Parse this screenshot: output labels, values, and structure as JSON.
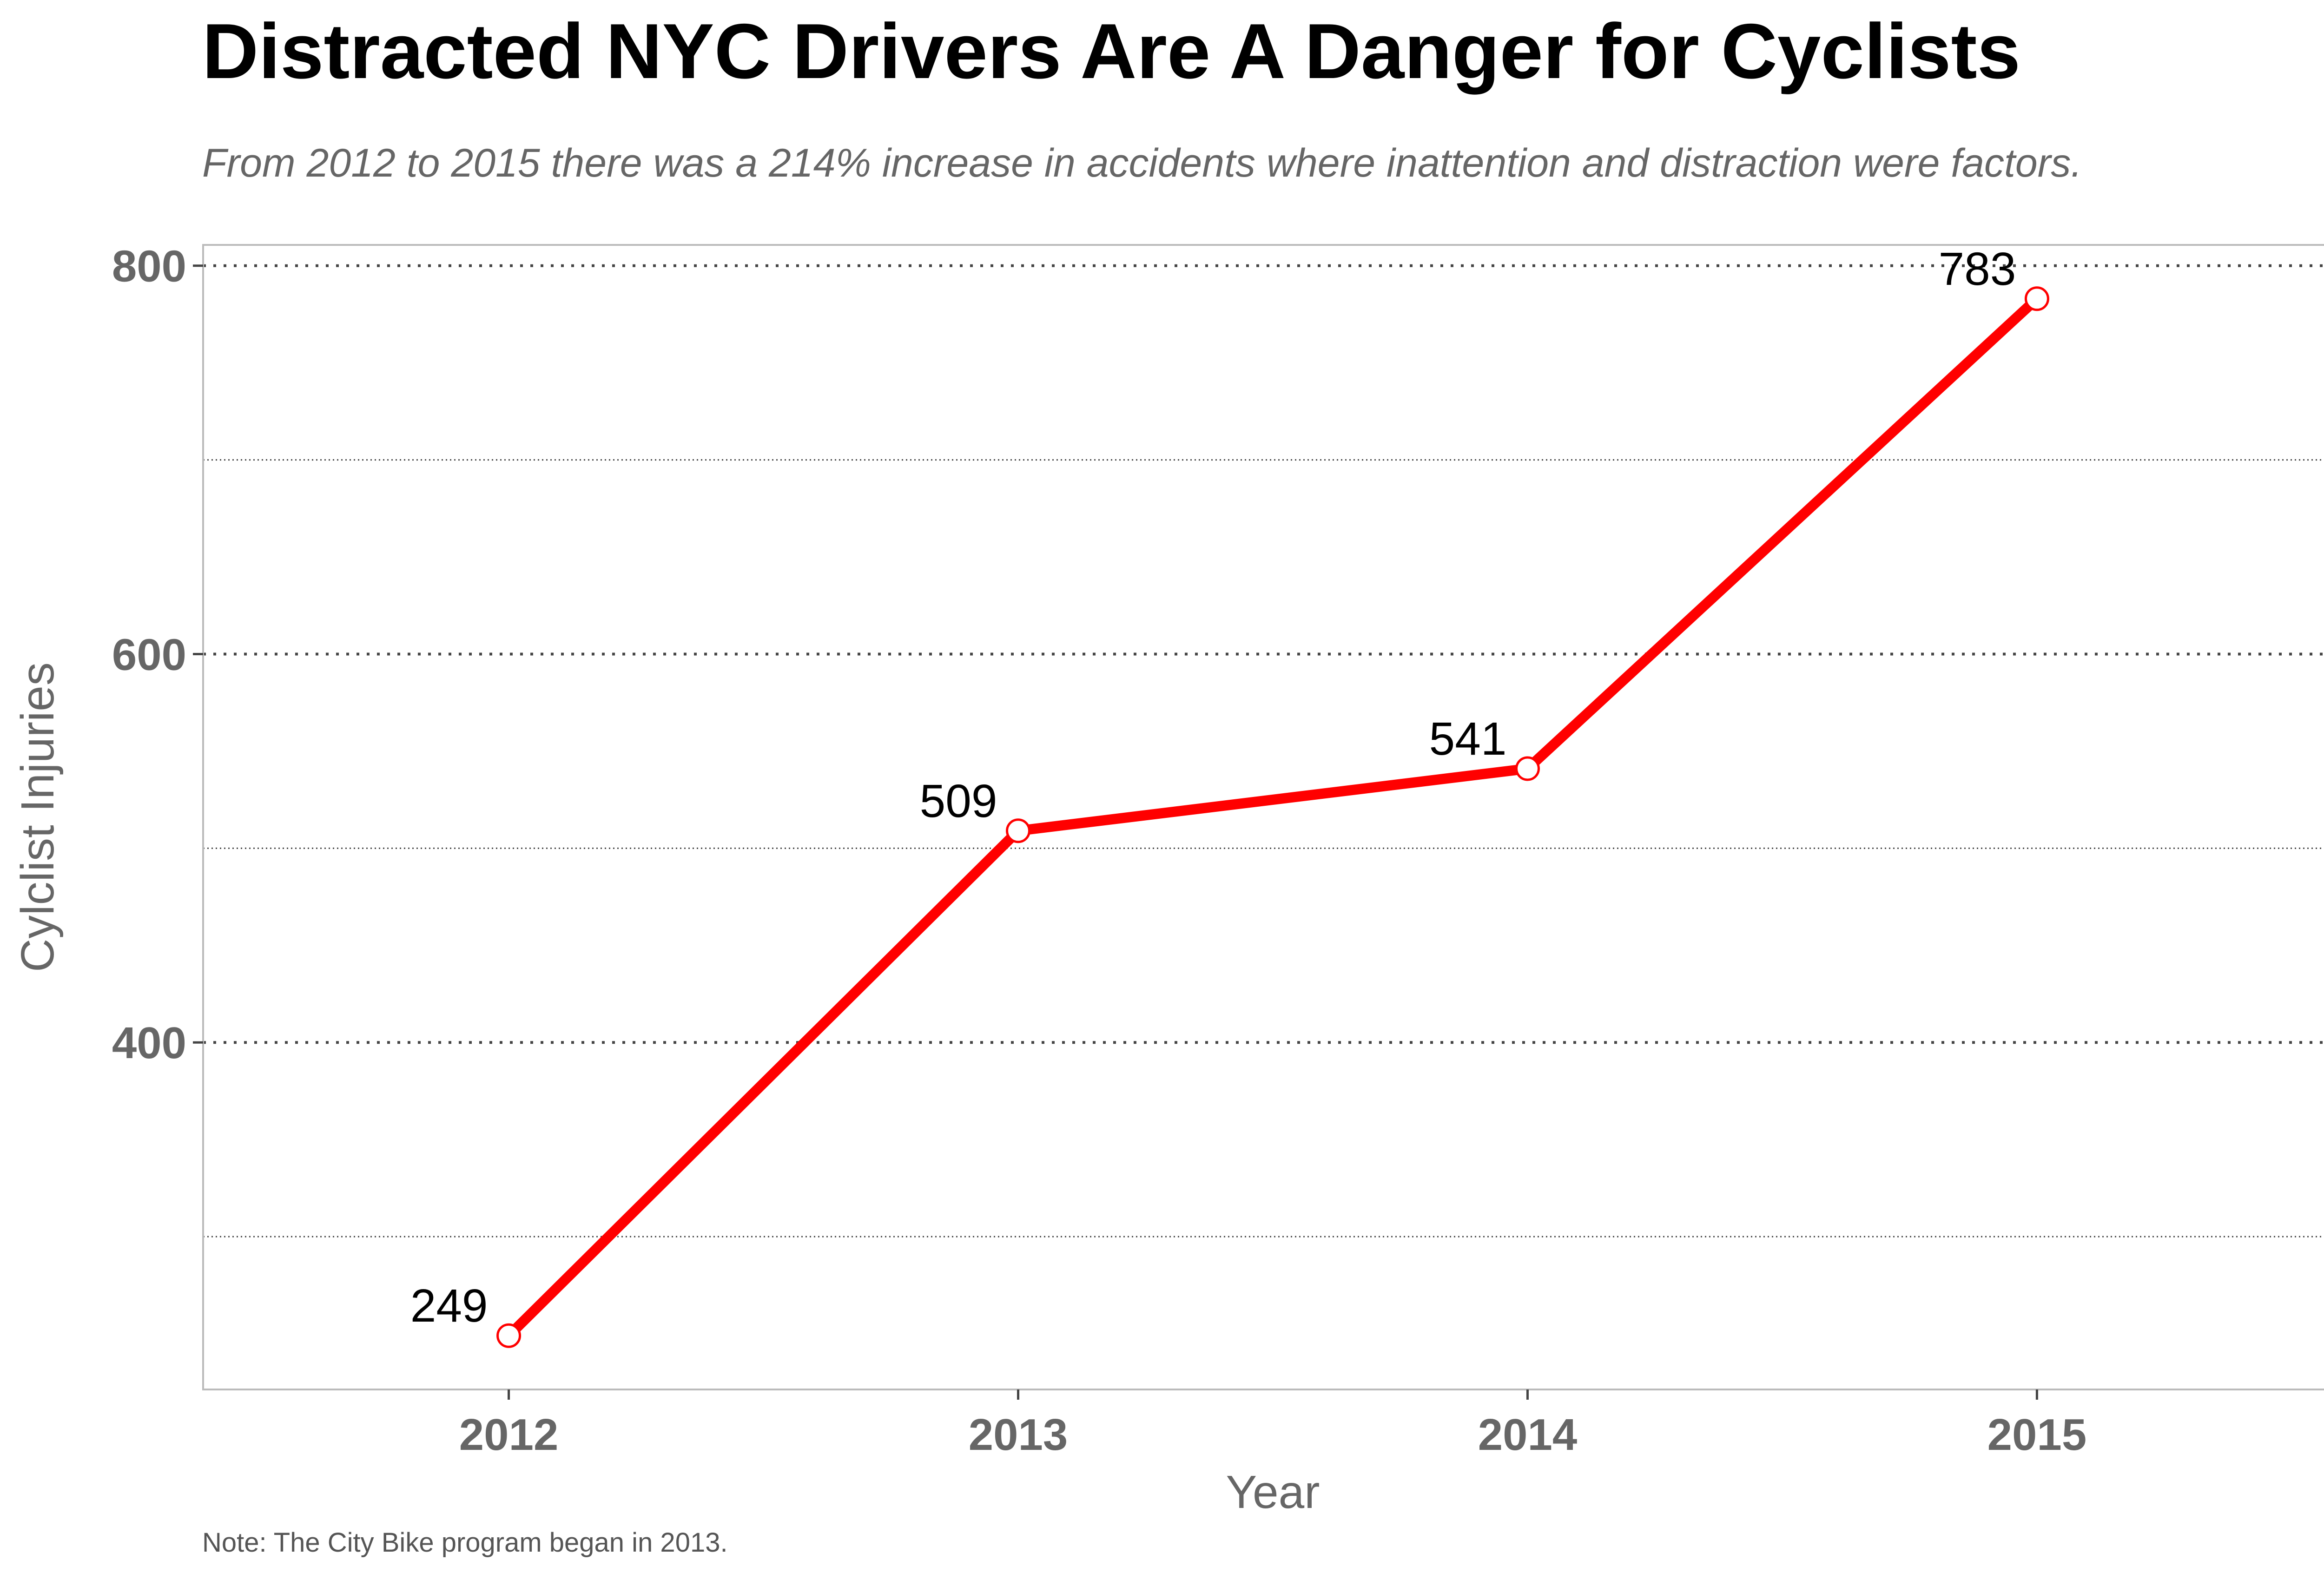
{
  "chart_data": {
    "type": "line",
    "title": "Distracted NYC Drivers Are A Danger for Cyclists",
    "subtitle": "From 2012 to 2015 there was a 214% increase in accidents where inattention and distraction were factors.",
    "note": "Note: The City Bike program began in 2013.",
    "xlabel": "Year",
    "ylabel": "Cylclist Injuries",
    "categories": [
      "2012",
      "2013",
      "2014",
      "2015"
    ],
    "series": [
      {
        "values": [
          249,
          509,
          541,
          783
        ],
        "color": "#ff0000"
      }
    ],
    "data_labels": [
      "249",
      "509",
      "541",
      "783"
    ],
    "yticks": [
      400,
      600,
      800
    ],
    "yticks_labels": [
      "400",
      "600",
      "800"
    ],
    "ylim": [
      221.3,
      810.7
    ],
    "grid": {
      "major": [
        400,
        600,
        800
      ],
      "minor": [
        300,
        500,
        700
      ],
      "style": "dotted"
    },
    "colors": {
      "line": "#ff0000",
      "marker_fill": "#ffffff",
      "panel_border": "#bbbbbb",
      "grid": "#444444"
    }
  }
}
